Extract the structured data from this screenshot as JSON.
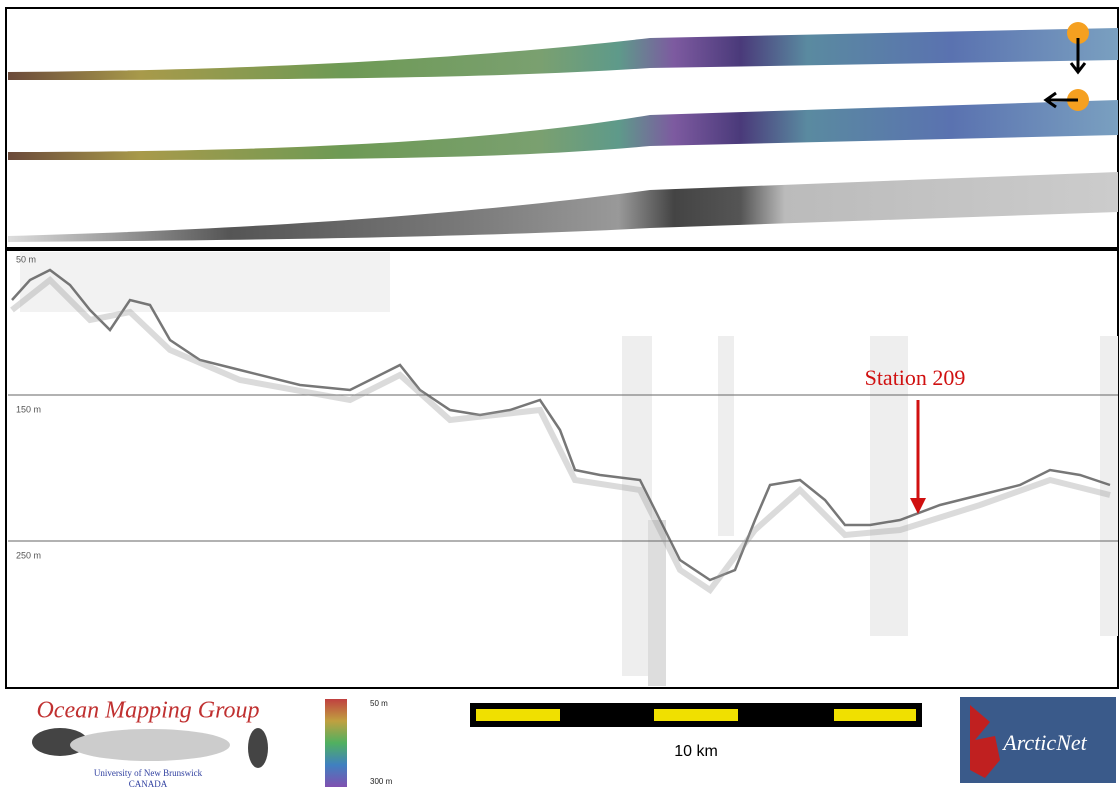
{
  "profile": {
    "depth_labels": [
      "50 m",
      "150 m",
      "250 m"
    ],
    "station_label": "Station 209"
  },
  "footer": {
    "group_name": "Ocean Mapping Group",
    "university": "University of New Brunswick",
    "country": "CANADA",
    "colorbar_top": "50 m",
    "colorbar_bottom": "300 m",
    "scale_label": "10 km",
    "logo_text": "ArcticNet"
  }
}
